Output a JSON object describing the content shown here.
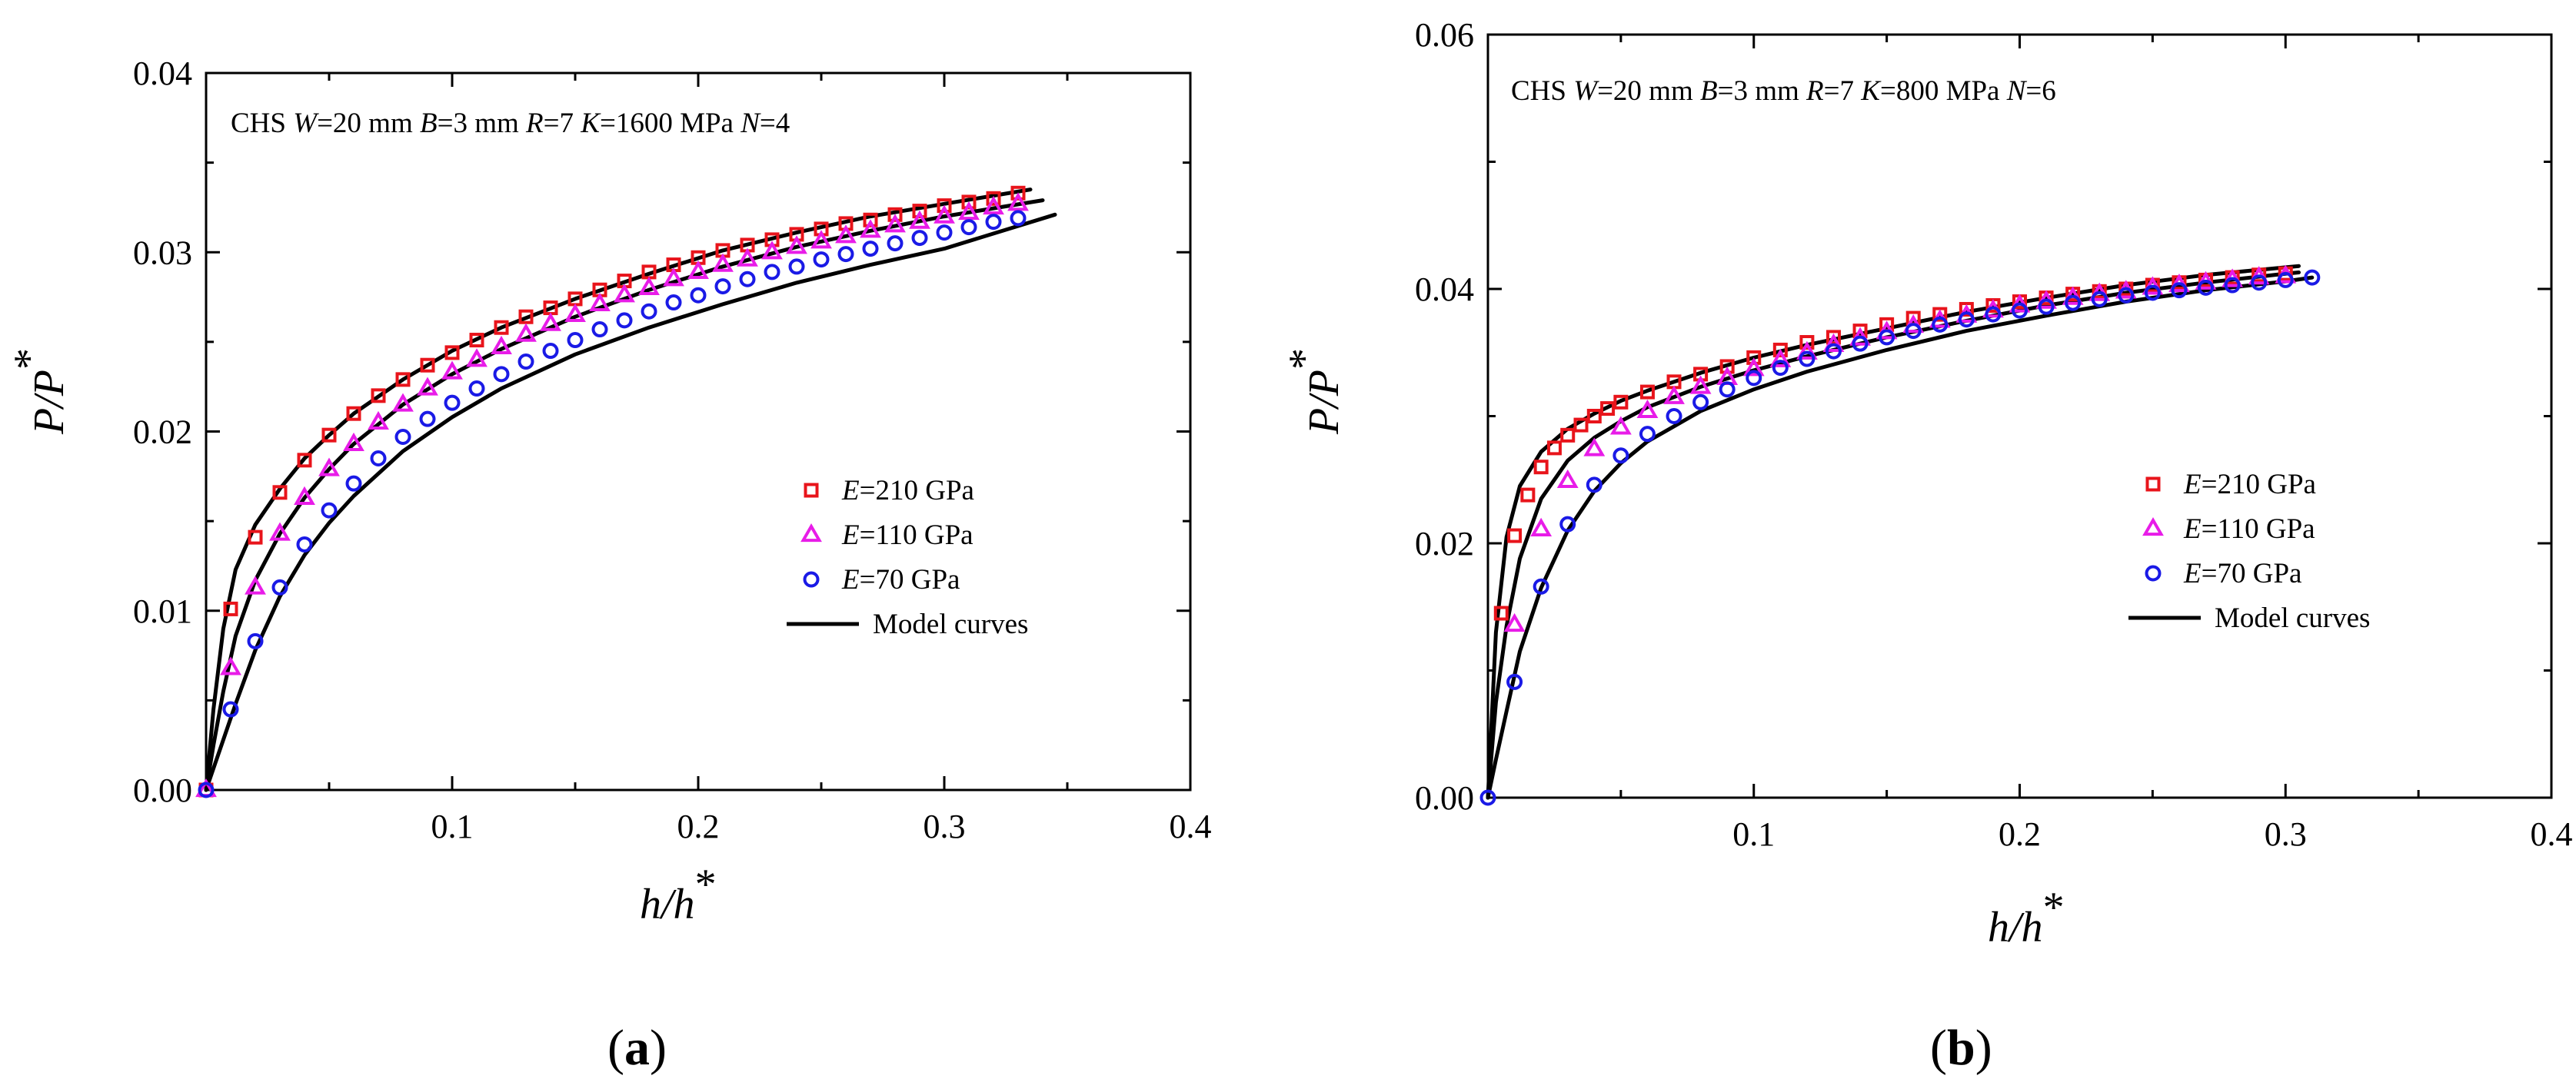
{
  "figure": {
    "panel_labels": [
      "(a)",
      "(b)"
    ]
  },
  "chart_data": [
    {
      "id": "a",
      "type": "scatter",
      "panel_label": "(a)",
      "annotation": {
        "prefix": "CHS ",
        "parts": [
          {
            "i": "W",
            "t": "=20 mm "
          },
          {
            "i": "B",
            "t": "=3 mm "
          },
          {
            "i": "R",
            "t": "=7 "
          },
          {
            "i": "K",
            "t": "=1600 MPa  "
          },
          {
            "i": "N",
            "t": "=4"
          }
        ]
      },
      "xlabel": {
        "main": "h/h",
        "sup": "*"
      },
      "ylabel": {
        "main": "P/P",
        "sup": "*"
      },
      "xlim": [
        0,
        0.4
      ],
      "ylim": [
        0,
        0.04
      ],
      "xticks": [
        0.1,
        0.2,
        0.3,
        0.4
      ],
      "xtick_labels": [
        "0.1",
        "0.2",
        "0.3",
        "0.4"
      ],
      "yticks": [
        0,
        0.01,
        0.02,
        0.03,
        0.04
      ],
      "ytick_labels": [
        "0.00",
        "0.01",
        "0.02",
        "0.03",
        "0.04"
      ],
      "series": [
        {
          "name": "E=210 GPa",
          "ital": "E",
          "rest": "=210 GPa",
          "marker": "square",
          "color": "#e8141b",
          "x": [
            0,
            0.01,
            0.02,
            0.03,
            0.04,
            0.05,
            0.06,
            0.07,
            0.08,
            0.09,
            0.1,
            0.11,
            0.12,
            0.13,
            0.14,
            0.15,
            0.16,
            0.17,
            0.18,
            0.19,
            0.2,
            0.21,
            0.22,
            0.23,
            0.24,
            0.25,
            0.26,
            0.27,
            0.28,
            0.29,
            0.3,
            0.31,
            0.32,
            0.33
          ],
          "y": [
            0.0,
            0.0101,
            0.0141,
            0.0166,
            0.0184,
            0.0198,
            0.021,
            0.022,
            0.0229,
            0.0237,
            0.0244,
            0.0251,
            0.0258,
            0.0264,
            0.0269,
            0.0274,
            0.0279,
            0.0284,
            0.0289,
            0.0293,
            0.0297,
            0.0301,
            0.0304,
            0.0307,
            0.031,
            0.0313,
            0.0316,
            0.0318,
            0.0321,
            0.0323,
            0.0326,
            0.0328,
            0.033,
            0.0333
          ]
        },
        {
          "name": "E=110 GPa",
          "ital": "E",
          "rest": "=110 GPa",
          "marker": "triangle",
          "color": "#e81ce8",
          "x": [
            0,
            0.01,
            0.02,
            0.03,
            0.04,
            0.05,
            0.06,
            0.07,
            0.08,
            0.09,
            0.1,
            0.11,
            0.12,
            0.13,
            0.14,
            0.15,
            0.16,
            0.17,
            0.18,
            0.19,
            0.2,
            0.21,
            0.22,
            0.23,
            0.24,
            0.25,
            0.26,
            0.27,
            0.28,
            0.29,
            0.3,
            0.31,
            0.32,
            0.33
          ],
          "y": [
            0.0,
            0.0068,
            0.0113,
            0.0143,
            0.0163,
            0.0179,
            0.0193,
            0.0205,
            0.0215,
            0.0224,
            0.0233,
            0.024,
            0.0247,
            0.0254,
            0.026,
            0.0265,
            0.0271,
            0.0276,
            0.028,
            0.0285,
            0.0289,
            0.0293,
            0.0296,
            0.03,
            0.0303,
            0.0306,
            0.0309,
            0.0312,
            0.0315,
            0.0317,
            0.032,
            0.0322,
            0.0325,
            0.0327
          ]
        },
        {
          "name": "E=70 GPa",
          "ital": "E",
          "rest": "=70 GPa",
          "marker": "circle",
          "color": "#1a1ae6",
          "x": [
            0,
            0.01,
            0.02,
            0.03,
            0.04,
            0.05,
            0.06,
            0.07,
            0.08,
            0.09,
            0.1,
            0.11,
            0.12,
            0.13,
            0.14,
            0.15,
            0.16,
            0.17,
            0.18,
            0.19,
            0.2,
            0.21,
            0.22,
            0.23,
            0.24,
            0.25,
            0.26,
            0.27,
            0.28,
            0.29,
            0.3,
            0.31,
            0.32,
            0.33
          ],
          "y": [
            0.0,
            0.0045,
            0.0083,
            0.0113,
            0.0137,
            0.0156,
            0.0171,
            0.0185,
            0.0197,
            0.0207,
            0.0216,
            0.0224,
            0.0232,
            0.0239,
            0.0245,
            0.0251,
            0.0257,
            0.0262,
            0.0267,
            0.0272,
            0.0276,
            0.0281,
            0.0285,
            0.0289,
            0.0292,
            0.0296,
            0.0299,
            0.0302,
            0.0305,
            0.0308,
            0.0311,
            0.0314,
            0.0317,
            0.0319
          ]
        }
      ],
      "model_curves": {
        "name": "Model curves",
        "color": "#000000",
        "lines": [
          {
            "x": [
              0,
              0.003,
              0.007,
              0.012,
              0.02,
              0.03,
              0.04,
              0.05,
              0.06,
              0.08,
              0.1,
              0.12,
              0.15,
              0.18,
              0.21,
              0.24,
              0.27,
              0.3,
              0.335
            ],
            "y": [
              0,
              0.0045,
              0.009,
              0.0123,
              0.0148,
              0.0168,
              0.0185,
              0.0198,
              0.021,
              0.0229,
              0.0245,
              0.0258,
              0.0274,
              0.0288,
              0.0301,
              0.0311,
              0.032,
              0.0327,
              0.0335
            ]
          },
          {
            "x": [
              0,
              0.003,
              0.007,
              0.012,
              0.02,
              0.03,
              0.04,
              0.05,
              0.06,
              0.08,
              0.1,
              0.12,
              0.15,
              0.18,
              0.21,
              0.24,
              0.27,
              0.3,
              0.34
            ],
            "y": [
              0,
              0.0025,
              0.0055,
              0.0086,
              0.0117,
              0.0143,
              0.0163,
              0.0179,
              0.0193,
              0.0215,
              0.0232,
              0.0246,
              0.0264,
              0.0279,
              0.0292,
              0.0303,
              0.0312,
              0.032,
              0.0329
            ]
          },
          {
            "x": [
              0,
              0.003,
              0.007,
              0.012,
              0.02,
              0.03,
              0.04,
              0.05,
              0.06,
              0.08,
              0.1,
              0.12,
              0.15,
              0.18,
              0.21,
              0.24,
              0.27,
              0.3,
              0.345
            ],
            "y": [
              0,
              0.0012,
              0.0028,
              0.0048,
              0.0078,
              0.0108,
              0.0131,
              0.0149,
              0.0164,
              0.0189,
              0.0208,
              0.0224,
              0.0243,
              0.0258,
              0.0271,
              0.0283,
              0.0293,
              0.0302,
              0.0321
            ]
          }
        ]
      },
      "legend_position": "center-right"
    },
    {
      "id": "b",
      "type": "scatter",
      "panel_label": "(b)",
      "annotation": {
        "prefix": "CHS ",
        "parts": [
          {
            "i": "W",
            "t": "=20 mm "
          },
          {
            "i": "B",
            "t": "=3 mm "
          },
          {
            "i": "R",
            "t": "=7 "
          },
          {
            "i": "K",
            "t": "=800 MPa  "
          },
          {
            "i": "N",
            "t": "=6"
          }
        ]
      },
      "xlabel": {
        "main": "h/h",
        "sup": "*"
      },
      "ylabel": {
        "main": "P/P",
        "sup": "*"
      },
      "xlim": [
        0,
        0.4
      ],
      "ylim": [
        0,
        0.06
      ],
      "xticks": [
        0.1,
        0.2,
        0.3,
        0.4
      ],
      "xtick_labels": [
        "0.1",
        "0.2",
        "0.3",
        "0.4"
      ],
      "yticks": [
        0,
        0.02,
        0.04,
        0.06
      ],
      "ytick_labels": [
        "0.00",
        "0.02",
        "0.04",
        "0.06"
      ],
      "series": [
        {
          "name": "E=210 GPa",
          "ital": "E",
          "rest": "=210 GPa",
          "marker": "square",
          "color": "#e8141b",
          "x": [
            0.005,
            0.01,
            0.015,
            0.02,
            0.025,
            0.03,
            0.035,
            0.04,
            0.045,
            0.05,
            0.06,
            0.07,
            0.08,
            0.09,
            0.1,
            0.11,
            0.12,
            0.13,
            0.14,
            0.15,
            0.16,
            0.17,
            0.18,
            0.19,
            0.2,
            0.21,
            0.22,
            0.23,
            0.24,
            0.25,
            0.26,
            0.27,
            0.28,
            0.29,
            0.3
          ],
          "y": [
            0.0145,
            0.0206,
            0.0238,
            0.026,
            0.0275,
            0.0285,
            0.0293,
            0.03,
            0.0306,
            0.0311,
            0.0319,
            0.0327,
            0.0333,
            0.0339,
            0.0346,
            0.0352,
            0.0358,
            0.0362,
            0.0367,
            0.0372,
            0.0377,
            0.038,
            0.0384,
            0.0387,
            0.039,
            0.0393,
            0.0396,
            0.0398,
            0.04,
            0.0403,
            0.0405,
            0.0407,
            0.0409,
            0.0411,
            0.0412
          ]
        },
        {
          "name": "E=110 GPa",
          "ital": "E",
          "rest": "=110 GPa",
          "marker": "triangle",
          "color": "#e81ce8",
          "x": [
            0.01,
            0.02,
            0.03,
            0.04,
            0.05,
            0.06,
            0.07,
            0.08,
            0.09,
            0.1,
            0.11,
            0.12,
            0.13,
            0.14,
            0.15,
            0.16,
            0.17,
            0.18,
            0.19,
            0.2,
            0.21,
            0.22,
            0.23,
            0.24,
            0.25,
            0.26,
            0.27,
            0.28,
            0.29,
            0.3
          ],
          "y": [
            0.0136,
            0.0211,
            0.0249,
            0.0274,
            0.0291,
            0.0304,
            0.0315,
            0.0323,
            0.033,
            0.0337,
            0.0344,
            0.035,
            0.0356,
            0.0361,
            0.0366,
            0.0371,
            0.0375,
            0.0379,
            0.0383,
            0.0387,
            0.039,
            0.0393,
            0.0396,
            0.0398,
            0.0401,
            0.0403,
            0.0405,
            0.0407,
            0.0409,
            0.041
          ]
        },
        {
          "name": "E=70 GPa",
          "ital": "E",
          "rest": "=70 GPa",
          "marker": "circle",
          "color": "#1a1ae6",
          "x": [
            0,
            0.01,
            0.02,
            0.03,
            0.04,
            0.05,
            0.06,
            0.07,
            0.08,
            0.09,
            0.1,
            0.11,
            0.12,
            0.13,
            0.14,
            0.15,
            0.16,
            0.17,
            0.18,
            0.19,
            0.2,
            0.21,
            0.22,
            0.23,
            0.24,
            0.25,
            0.26,
            0.27,
            0.28,
            0.29,
            0.3,
            0.31
          ],
          "y": [
            0.0,
            0.0091,
            0.0166,
            0.0215,
            0.0246,
            0.0269,
            0.0286,
            0.03,
            0.0311,
            0.0321,
            0.033,
            0.0338,
            0.0345,
            0.0351,
            0.0357,
            0.0362,
            0.0367,
            0.0372,
            0.0376,
            0.038,
            0.0383,
            0.0386,
            0.0389,
            0.0392,
            0.0395,
            0.0397,
            0.0399,
            0.0401,
            0.0403,
            0.0405,
            0.0407,
            0.0409
          ]
        }
      ],
      "model_curves": {
        "name": "Model curves",
        "color": "#000000",
        "lines": [
          {
            "x": [
              0,
              0.003,
              0.007,
              0.012,
              0.02,
              0.03,
              0.04,
              0.05,
              0.06,
              0.08,
              0.1,
              0.12,
              0.15,
              0.18,
              0.21,
              0.24,
              0.27,
              0.3,
              0.305
            ],
            "y": [
              0,
              0.013,
              0.0205,
              0.0245,
              0.0272,
              0.029,
              0.0302,
              0.0312,
              0.032,
              0.0334,
              0.0346,
              0.0356,
              0.0369,
              0.0382,
              0.0393,
              0.0403,
              0.0411,
              0.0417,
              0.0418
            ]
          },
          {
            "x": [
              0,
              0.003,
              0.007,
              0.012,
              0.02,
              0.03,
              0.04,
              0.05,
              0.06,
              0.08,
              0.1,
              0.12,
              0.15,
              0.18,
              0.21,
              0.24,
              0.27,
              0.3,
              0.305
            ],
            "y": [
              0,
              0.0075,
              0.0135,
              0.0188,
              0.0235,
              0.0265,
              0.0283,
              0.0296,
              0.0307,
              0.0323,
              0.0336,
              0.0347,
              0.0362,
              0.0375,
              0.0387,
              0.0397,
              0.0405,
              0.0412,
              0.0413
            ]
          },
          {
            "x": [
              0,
              0.003,
              0.007,
              0.012,
              0.02,
              0.03,
              0.04,
              0.05,
              0.06,
              0.08,
              0.1,
              0.12,
              0.15,
              0.18,
              0.21,
              0.24,
              0.27,
              0.3,
              0.31
            ],
            "y": [
              0,
              0.003,
              0.0068,
              0.0115,
              0.0165,
              0.021,
              0.0241,
              0.0263,
              0.028,
              0.0304,
              0.0321,
              0.0335,
              0.0352,
              0.0367,
              0.0379,
              0.039,
              0.0399,
              0.0406,
              0.0409
            ]
          }
        ]
      },
      "legend_position": "center-right"
    }
  ]
}
